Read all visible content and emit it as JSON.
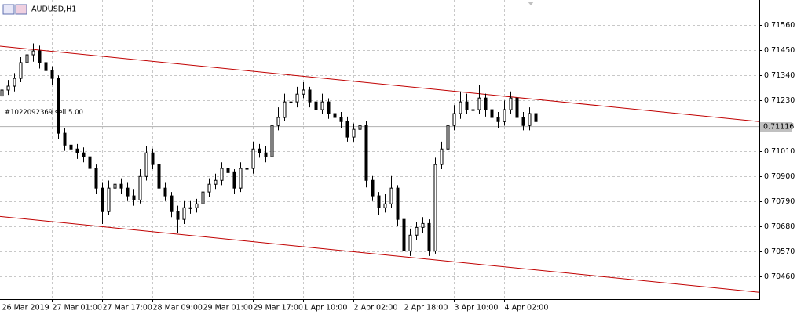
{
  "chart_data": {
    "type": "candlestick",
    "title": "AUDUSD,H1",
    "open": [
      0.7125,
      0.71276,
      0.71293,
      0.71327,
      0.71396,
      0.7143,
      0.71447,
      0.71396,
      0.71361,
      0.71327,
      0.71087,
      0.71035,
      0.71018,
      0.71001,
      0.70984,
      0.70933,
      0.70847,
      0.70744,
      0.70847,
      0.70864,
      0.70847,
      0.70813,
      0.70795,
      0.70898,
      0.71001,
      0.7095,
      0.70847,
      0.70813,
      0.70744,
      0.7071,
      0.70761,
      0.70761,
      0.70778,
      0.7083,
      0.70864,
      0.70881,
      0.70933,
      0.70915,
      0.70847,
      0.70933,
      0.70933,
      0.71018,
      0.71001,
      0.70984,
      0.71121,
      0.71156,
      0.71224,
      0.71224,
      0.71258,
      0.71276,
      0.71224,
      0.7119,
      0.71224,
      0.71173,
      0.71156,
      0.71138,
      0.7107,
      0.71104,
      0.71121,
      0.70881,
      0.70813,
      0.70761,
      0.70778,
      0.70847,
      0.7071,
      0.70572,
      0.70641,
      0.70675,
      0.70692,
      0.70572,
      0.7095,
      0.71018,
      0.71121,
      0.71173,
      0.71224,
      0.7119,
      0.7119,
      0.71241,
      0.7119,
      0.71156,
      0.71138,
      0.7119,
      0.71241,
      0.71156,
      0.71121,
      0.71173
    ],
    "high": [
      0.713,
      0.7132,
      0.7135,
      0.7142,
      0.7147,
      0.7148,
      0.7147,
      0.7142,
      0.7138,
      0.7134,
      0.7111,
      0.7106,
      0.7104,
      0.71025,
      0.71,
      0.7095,
      0.7087,
      0.7088,
      0.709,
      0.7089,
      0.7087,
      0.7084,
      0.7093,
      0.7103,
      0.7102,
      0.7097,
      0.7087,
      0.7083,
      0.7077,
      0.7079,
      0.7079,
      0.708,
      0.7085,
      0.7089,
      0.7091,
      0.7096,
      0.7096,
      0.7093,
      0.7096,
      0.7097,
      0.7105,
      0.7104,
      0.7103,
      0.7115,
      0.712,
      0.7126,
      0.7126,
      0.7129,
      0.7131,
      0.7129,
      0.7125,
      0.7126,
      0.7124,
      0.7119,
      0.7118,
      0.7116,
      0.7113,
      0.713,
      0.7114,
      0.709,
      0.7083,
      0.7082,
      0.709,
      0.7086,
      0.7073,
      0.7067,
      0.707,
      0.7072,
      0.7071,
      0.7098,
      0.7105,
      0.7115,
      0.7121,
      0.7127,
      0.7126,
      0.7123,
      0.713,
      0.7126,
      0.7121,
      0.7118,
      0.7123,
      0.7127,
      0.7126,
      0.7118,
      0.712,
      0.712
    ],
    "low": [
      0.71225,
      0.71255,
      0.7127,
      0.7131,
      0.7138,
      0.714,
      0.7137,
      0.7134,
      0.713,
      0.7106,
      0.7101,
      0.7099,
      0.70975,
      0.7096,
      0.7091,
      0.7082,
      0.7069,
      0.7073,
      0.7083,
      0.7082,
      0.7079,
      0.7077,
      0.7078,
      0.7088,
      0.7093,
      0.7082,
      0.7079,
      0.7072,
      0.7065,
      0.7069,
      0.70735,
      0.7074,
      0.7076,
      0.7081,
      0.7084,
      0.7086,
      0.7089,
      0.7082,
      0.7083,
      0.709,
      0.7091,
      0.7098,
      0.7096,
      0.7097,
      0.711,
      0.7114,
      0.7119,
      0.712,
      0.7124,
      0.712,
      0.7116,
      0.7117,
      0.7115,
      0.7113,
      0.7111,
      0.7105,
      0.7105,
      0.7108,
      0.7085,
      0.7079,
      0.7073,
      0.7074,
      0.7076,
      0.7068,
      0.7053,
      0.7055,
      0.7062,
      0.7065,
      0.7055,
      0.7056,
      0.7093,
      0.71,
      0.711,
      0.7115,
      0.7117,
      0.7116,
      0.7117,
      0.7116,
      0.7113,
      0.7111,
      0.7112,
      0.7117,
      0.7113,
      0.711,
      0.711,
      0.7111
    ],
    "close": [
      0.71276,
      0.71293,
      0.71327,
      0.71396,
      0.7143,
      0.71447,
      0.71396,
      0.71361,
      0.71327,
      0.71087,
      0.71035,
      0.71018,
      0.71001,
      0.70984,
      0.70933,
      0.70847,
      0.70744,
      0.70847,
      0.70864,
      0.70847,
      0.70813,
      0.70795,
      0.70898,
      0.71001,
      0.7095,
      0.70847,
      0.70813,
      0.70744,
      0.7071,
      0.70761,
      0.70761,
      0.70778,
      0.7083,
      0.70864,
      0.70881,
      0.70933,
      0.70915,
      0.70847,
      0.70933,
      0.70933,
      0.71018,
      0.71001,
      0.70984,
      0.71121,
      0.71156,
      0.71224,
      0.71224,
      0.71258,
      0.71276,
      0.71224,
      0.7119,
      0.71224,
      0.71173,
      0.71156,
      0.71138,
      0.7107,
      0.71104,
      0.71121,
      0.70881,
      0.70813,
      0.70761,
      0.70778,
      0.70847,
      0.7071,
      0.70572,
      0.70641,
      0.70675,
      0.70692,
      0.70572,
      0.7095,
      0.71018,
      0.71121,
      0.71173,
      0.71224,
      0.7119,
      0.7119,
      0.71241,
      0.7119,
      0.71156,
      0.71138,
      0.7119,
      0.71241,
      0.71156,
      0.71121,
      0.71173,
      0.71138
    ],
    "ylim": [
      0.70361,
      0.7167
    ],
    "yticks": [
      {
        "value": 0.7156,
        "label": "0.71560"
      },
      {
        "value": 0.7145,
        "label": "0.71450"
      },
      {
        "value": 0.7134,
        "label": "0.71340"
      },
      {
        "value": 0.7123,
        "label": "0.71230"
      },
      {
        "value": 0.7101,
        "label": "0.71010"
      },
      {
        "value": 0.709,
        "label": "0.70900"
      },
      {
        "value": 0.7079,
        "label": "0.70790"
      },
      {
        "value": 0.7068,
        "label": "0.70680"
      },
      {
        "value": 0.7057,
        "label": "0.70570"
      },
      {
        "value": 0.7046,
        "label": "0.70460"
      }
    ],
    "xticks": [
      {
        "value": 0,
        "label": "26 Mar 2019"
      },
      {
        "value": 8,
        "label": "27 Mar 01:00"
      },
      {
        "value": 16,
        "label": "27 Mar 17:00"
      },
      {
        "value": 24,
        "label": "28 Mar 09:00"
      },
      {
        "value": 32,
        "label": "29 Mar 01:00"
      },
      {
        "value": 40,
        "label": "29 Mar 17:00"
      },
      {
        "value": 48,
        "label": "1 Apr 10:00"
      },
      {
        "value": 56,
        "label": "2 Apr 02:00"
      },
      {
        "value": 64,
        "label": "2 Apr 18:00"
      },
      {
        "value": 72,
        "label": "3 Apr 10:00"
      },
      {
        "value": 80,
        "label": "4 Apr 02:00"
      }
    ],
    "grid": true,
    "bull_color": "#ffffff",
    "bear_color": "#000000",
    "current_price": {
      "value": 0.71116,
      "label": "0.71116"
    },
    "order_line": {
      "label": "#1022092369 sell 5.00",
      "price": 0.71159,
      "color": "#008000"
    },
    "channel": {
      "color": "#c00000",
      "upper": [
        0.71468,
        0.71138
      ],
      "lower": [
        0.70723,
        0.70391
      ]
    }
  }
}
